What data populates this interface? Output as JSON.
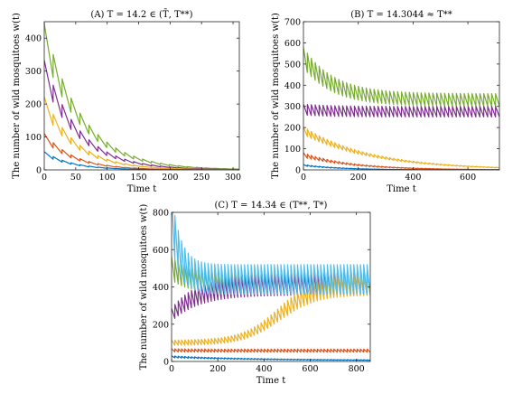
{
  "chart_data": [
    {
      "type": "line",
      "title": "(A) T = 14.2 ∈ (T̄, T**)",
      "xlabel": "Time t",
      "ylabel": "The number of wild mosquitoes w(t)",
      "xlim": [
        0,
        310
      ],
      "ylim": [
        0,
        450
      ],
      "xticks": [
        0,
        50,
        100,
        150,
        200,
        250,
        300
      ],
      "yticks": [
        0,
        100,
        200,
        300,
        400
      ],
      "period": 14.2,
      "grid": false,
      "series": [
        {
          "color": "#77ac30",
          "start": 400,
          "end": 0,
          "tau": 60,
          "amp": 0.22,
          "shape": "decay"
        },
        {
          "color": "#7e2f8e",
          "start": 300,
          "end": 0,
          "tau": 55,
          "amp": 0.22,
          "shape": "decay"
        },
        {
          "color": "#edb120",
          "start": 200,
          "end": 0,
          "tau": 52,
          "amp": 0.22,
          "shape": "decay"
        },
        {
          "color": "#d95319",
          "start": 100,
          "end": 0,
          "tau": 48,
          "amp": 0.22,
          "shape": "decay"
        },
        {
          "color": "#0072bd",
          "start": 50,
          "end": 0,
          "tau": 45,
          "amp": 0.22,
          "shape": "decay"
        }
      ]
    },
    {
      "type": "line",
      "title": "(B) T = 14.3044 ≈ T**",
      "xlabel": "Time t",
      "ylabel": "The number of wild mosquitoes w(t)",
      "xlim": [
        0,
        715
      ],
      "ylim": [
        0,
        700
      ],
      "xticks": [
        0,
        200,
        400,
        600
      ],
      "yticks": [
        0,
        100,
        200,
        300,
        400,
        500,
        600,
        700
      ],
      "period": 14.3044,
      "grid": false,
      "series": [
        {
          "color": "#77ac30",
          "start": 530,
          "end": 330,
          "tau": 110,
          "amp": 0.18,
          "shape": "decay"
        },
        {
          "color": "#7e2f8e",
          "start": 285,
          "end": 275,
          "tau": 100,
          "amp": 0.18,
          "shape": "decay"
        },
        {
          "color": "#edb120",
          "start": 185,
          "end": 0,
          "tau": 250,
          "amp": 0.2,
          "shape": "decay"
        },
        {
          "color": "#d95319",
          "start": 70,
          "end": 0,
          "tau": 180,
          "amp": 0.3,
          "shape": "decay"
        },
        {
          "color": "#0072bd",
          "start": 22,
          "end": 0,
          "tau": 140,
          "amp": 0.3,
          "shape": "decay"
        }
      ]
    },
    {
      "type": "line",
      "title": "(C) T = 14.34 ∈ (T**, T*)",
      "xlabel": "Time t",
      "ylabel": "The number of wild mosquitoes w(t)",
      "xlim": [
        0,
        860
      ],
      "ylim": [
        0,
        800
      ],
      "xticks": [
        0,
        200,
        400,
        600,
        800
      ],
      "yticks": [
        0,
        200,
        400,
        600,
        800
      ],
      "period": 14.34,
      "grid": false,
      "series": [
        {
          "color": "#77ac30",
          "start": 500,
          "end": 415,
          "tau": 80,
          "amp": 0.25,
          "shape": "decay"
        },
        {
          "color": "#7e2f8e",
          "start": 250,
          "end": 415,
          "tau": 120,
          "amp": 0.28,
          "shape": "decay"
        },
        {
          "color": "#edb120",
          "start": 100,
          "end": 415,
          "mid": 470,
          "width": 80,
          "amp": 0.28,
          "shape": "sigmoid"
        },
        {
          "color": "#d95319",
          "start": 60,
          "end": 58,
          "tau": 100,
          "amp": 0.28,
          "shape": "decay"
        },
        {
          "color": "#0072bd",
          "start": 25,
          "end": 5,
          "tau": 400,
          "amp": 0.4,
          "shape": "decay"
        },
        {
          "color": "#4dbeee",
          "start": 760,
          "end": 440,
          "tau": 40,
          "amp": 0.36,
          "shape": "decay"
        }
      ]
    }
  ]
}
